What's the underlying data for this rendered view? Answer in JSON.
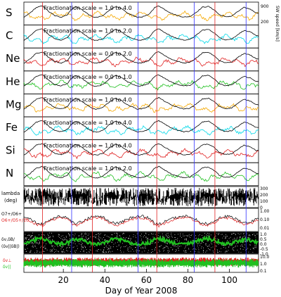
{
  "chart_data": {
    "type": "line",
    "xlabel": "Day of Year 2008",
    "xlim": [
      1,
      114
    ],
    "xticks": [
      "20",
      "40",
      "60",
      "80",
      "100"
    ],
    "xtick_values": [
      20,
      40,
      60,
      80,
      100
    ],
    "blue_vlines": [
      24,
      56,
      83,
      108
    ],
    "red_vlines": [
      10,
      34,
      65,
      93
    ],
    "black_series_label": "SW speed [km/s]",
    "black_series_ticks": [
      "900",
      "200"
    ],
    "colors": {
      "orange": "#f5a800",
      "cyan": "#00d8e8",
      "red": "#e02020",
      "green": "#20c020",
      "black": "#000000",
      "blue": "#3030ff"
    },
    "element_panels": [
      {
        "element": "S",
        "scale": "Fractionation scale = 1.0 to 4.0",
        "color": "orange"
      },
      {
        "element": "C",
        "scale": "Fractionation scale = 1.0 to 2.0",
        "color": "cyan"
      },
      {
        "element": "Ne",
        "scale": "Fractionation scale = 0.0 to 2.0",
        "color": "red"
      },
      {
        "element": "He",
        "scale": "Fractionation scale = 0.0 to 1.0",
        "color": "green"
      },
      {
        "element": "Mg",
        "scale": "Fractionation scale = 1.0 to 4.0",
        "color": "orange"
      },
      {
        "element": "Fe",
        "scale": "Fractionation scale = 1.0 to 4.0",
        "color": "cyan"
      },
      {
        "element": "Si",
        "scale": "Fractionation scale = 1.0 to 4.0",
        "color": "red"
      },
      {
        "element": "N",
        "scale": "Fractionation scale = 1.0 to 2.0",
        "color": "green"
      }
    ],
    "lambda_panel": {
      "label": "lambda",
      "unit": "(deg)",
      "ticks": [
        "300",
        "200",
        "100",
        "0"
      ]
    },
    "oxygen_panel": {
      "label_a": "O7+/O6+",
      "label_b": "O6+/O5+/10",
      "ticks": [
        "1.00",
        "0.10",
        "0.01"
      ]
    },
    "dv_panel": {
      "label_a": "δv,δB/",
      "label_b": "(δv||δB|)",
      "ticks": [
        "1.0",
        "0.5",
        "0.0",
        "-0.5",
        "-1.0"
      ]
    },
    "ratio_panel": {
      "label_a": "δv⊥",
      "label_b": "δv||",
      "ticks": [
        "10.0",
        "1.0",
        "0.1"
      ]
    },
    "speed_days": [
      1,
      4,
      7,
      10,
      13,
      16,
      19,
      22,
      24,
      26,
      29,
      32,
      34,
      36,
      39,
      42,
      45,
      48,
      51,
      54,
      56,
      58,
      61,
      64,
      66,
      69,
      72,
      75,
      78,
      81,
      84,
      87,
      90,
      93,
      95,
      98,
      101,
      104,
      107,
      110,
      113
    ],
    "speed_values": [
      380,
      520,
      690,
      740,
      560,
      430,
      390,
      470,
      640,
      720,
      620,
      480,
      400,
      380,
      430,
      600,
      720,
      650,
      510,
      430,
      380,
      400,
      460,
      690,
      740,
      620,
      510,
      440,
      390,
      410,
      540,
      700,
      720,
      600,
      470,
      400,
      420,
      560,
      690,
      640,
      520
    ]
  }
}
